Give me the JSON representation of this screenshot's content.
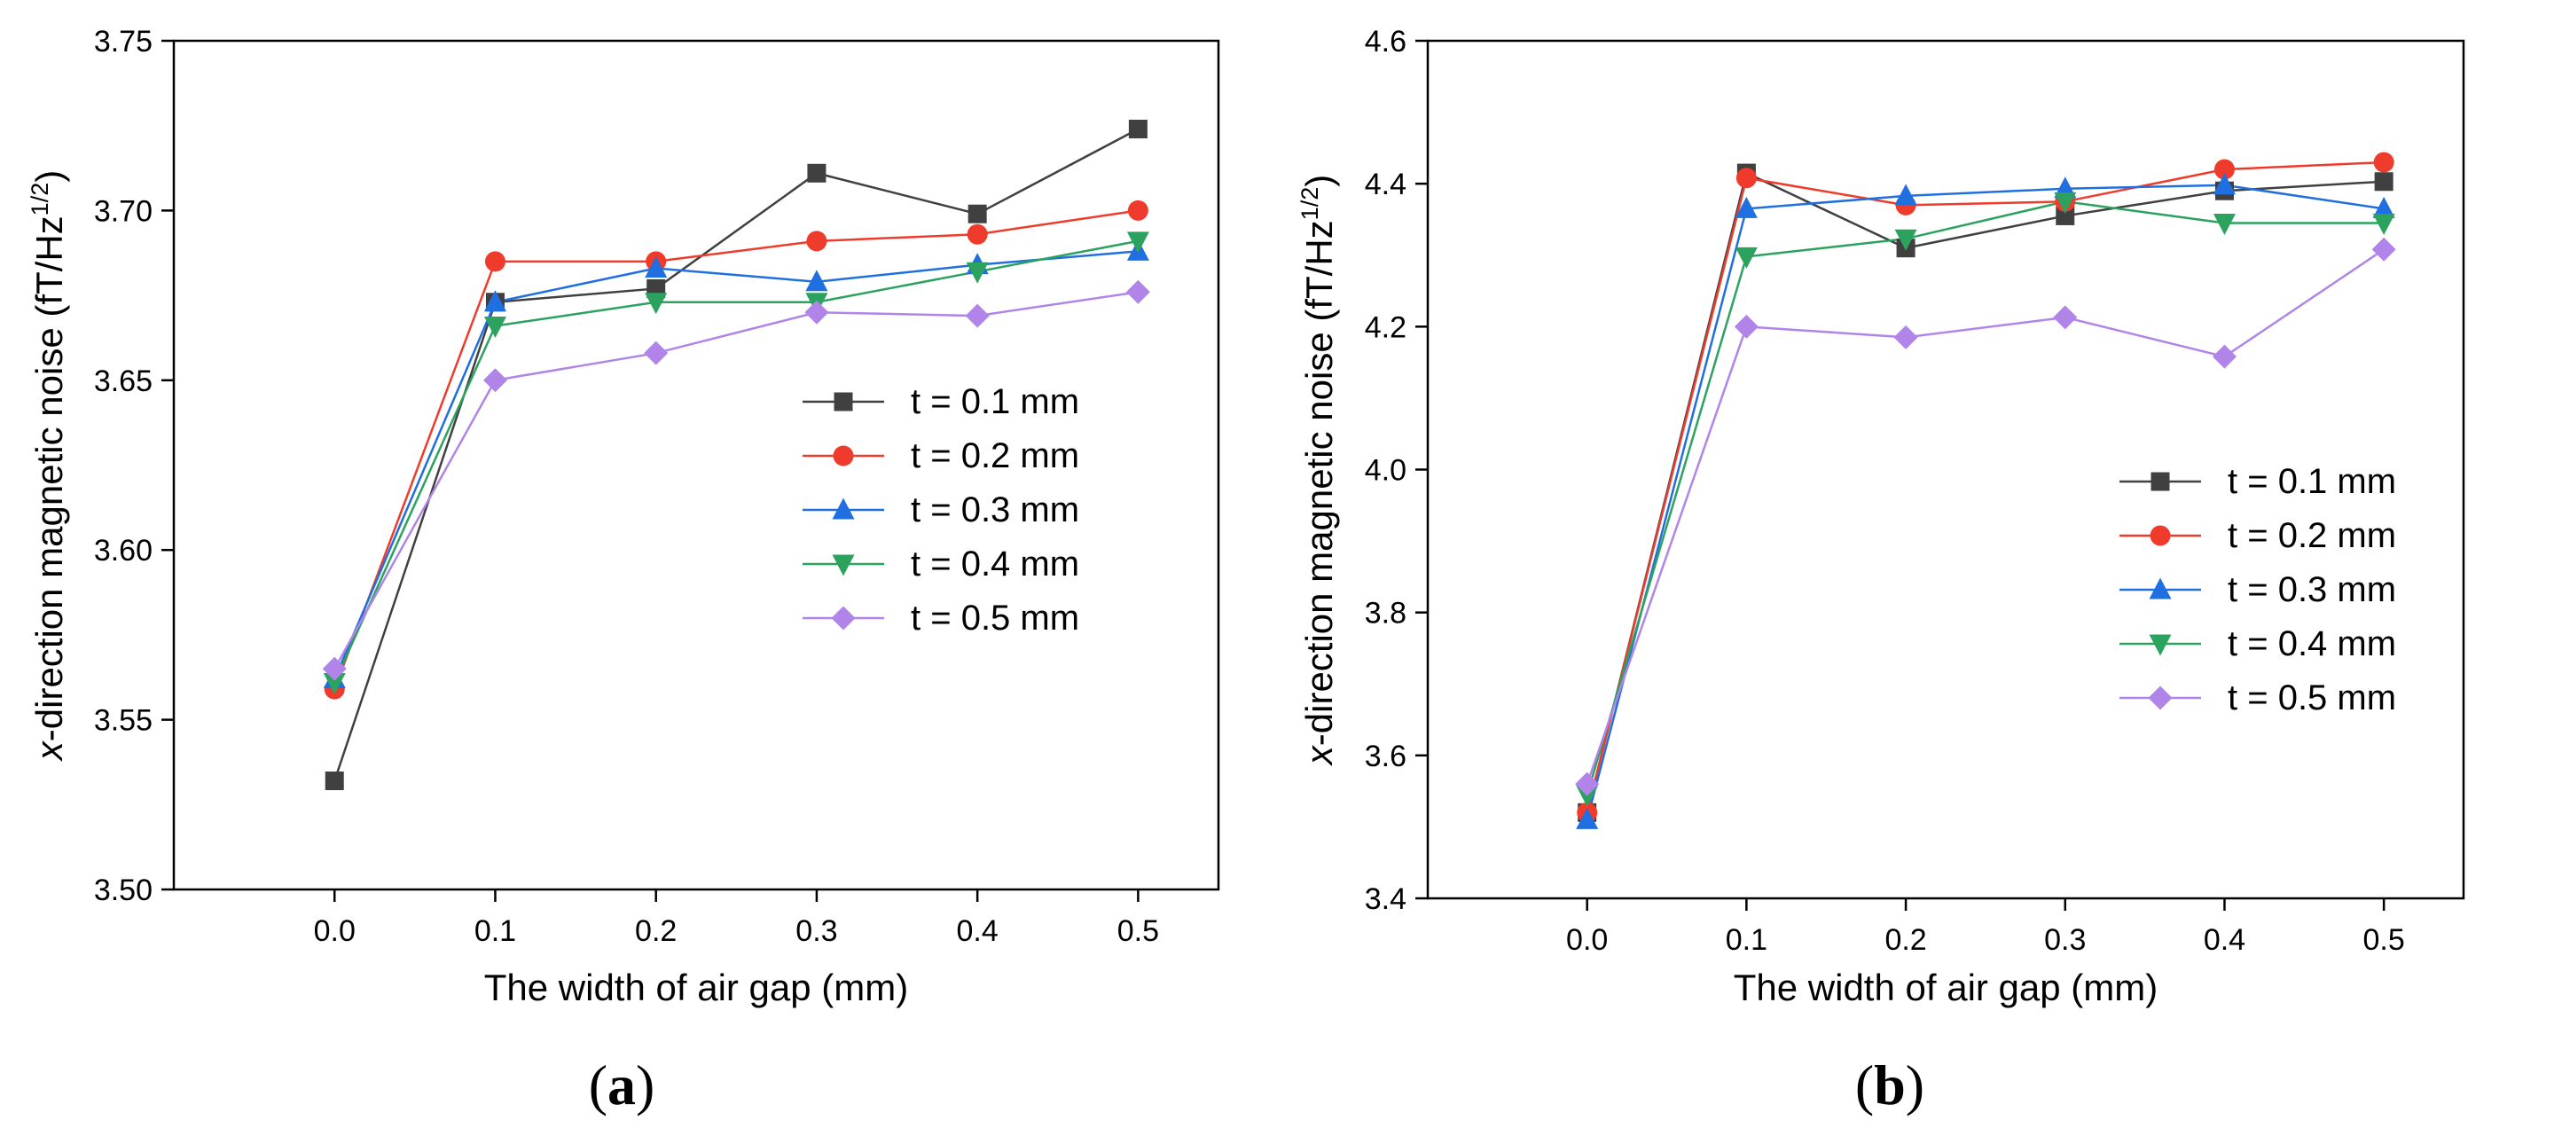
{
  "chart_data": [
    {
      "type": "line",
      "panel_label": "a",
      "xlabel": "The width of air gap (mm)",
      "ylabel_prefix": "x",
      "ylabel_main": "-direction magnetic noise (fT/Hz",
      "ylabel_sup": "1/2",
      "ylabel_end": ")",
      "x": [
        0.0,
        0.1,
        0.2,
        0.3,
        0.4,
        0.5
      ],
      "xlim": [
        -0.1,
        0.55
      ],
      "ylim": [
        3.5,
        3.75
      ],
      "xticks": [
        "0.0",
        "0.1",
        "0.2",
        "0.3",
        "0.4",
        "0.5"
      ],
      "yticks": [
        3.5,
        3.55,
        3.6,
        3.65,
        3.7,
        3.75
      ],
      "ytick_labels": [
        "3.50",
        "3.55",
        "3.60",
        "3.65",
        "3.70",
        "3.75"
      ],
      "legend_position": "center-right",
      "series": [
        {
          "name": "t = 0.1 mm",
          "color": "#404040",
          "marker": "square",
          "values": [
            3.532,
            3.673,
            3.677,
            3.711,
            3.699,
            3.724
          ]
        },
        {
          "name": "t = 0.2 mm",
          "color": "#ef3b2c",
          "marker": "circle",
          "values": [
            3.559,
            3.685,
            3.685,
            3.691,
            3.693,
            3.7
          ]
        },
        {
          "name": "t = 0.3 mm",
          "color": "#1f6fe0",
          "marker": "triangle-up",
          "values": [
            3.562,
            3.673,
            3.683,
            3.679,
            3.684,
            3.688
          ]
        },
        {
          "name": "t = 0.4 mm",
          "color": "#2ca25f",
          "marker": "triangle-down",
          "values": [
            3.561,
            3.666,
            3.673,
            3.673,
            3.682,
            3.691
          ]
        },
        {
          "name": "t = 0.5 mm",
          "color": "#b084e8",
          "marker": "diamond",
          "values": [
            3.565,
            3.65,
            3.658,
            3.67,
            3.669,
            3.676
          ]
        }
      ]
    },
    {
      "type": "line",
      "panel_label": "b",
      "xlabel": "The width of air gap (mm)",
      "ylabel_prefix": "x",
      "ylabel_main": "-direction magnetic noise (fT/Hz",
      "ylabel_sup": "1/2",
      "ylabel_end": ")",
      "x": [
        0.0,
        0.1,
        0.2,
        0.3,
        0.4,
        0.5
      ],
      "xlim": [
        -0.1,
        0.55
      ],
      "ylim": [
        3.4,
        4.6
      ],
      "xticks": [
        "0.0",
        "0.1",
        "0.2",
        "0.3",
        "0.4",
        "0.5"
      ],
      "yticks": [
        3.4,
        3.6,
        3.8,
        4.0,
        4.2,
        4.4,
        4.6
      ],
      "ytick_labels": [
        "3.4",
        "3.6",
        "3.8",
        "4.0",
        "4.2",
        "4.4",
        "4.6"
      ],
      "legend_position": "center-right",
      "series": [
        {
          "name": "t = 0.1 mm",
          "color": "#404040",
          "marker": "square",
          "values": [
            3.52,
            4.415,
            4.31,
            4.355,
            4.39,
            4.403
          ]
        },
        {
          "name": "t = 0.2 mm",
          "color": "#ef3b2c",
          "marker": "circle",
          "values": [
            3.52,
            4.408,
            4.37,
            4.375,
            4.42,
            4.43
          ]
        },
        {
          "name": "t = 0.3 mm",
          "color": "#1f6fe0",
          "marker": "triangle-up",
          "values": [
            3.51,
            4.365,
            4.383,
            4.393,
            4.398,
            4.365
          ]
        },
        {
          "name": "t = 0.4 mm",
          "color": "#2ca25f",
          "marker": "triangle-down",
          "values": [
            3.545,
            4.298,
            4.323,
            4.375,
            4.345,
            4.345
          ]
        },
        {
          "name": "t = 0.5 mm",
          "color": "#b084e8",
          "marker": "diamond",
          "values": [
            3.56,
            4.2,
            4.185,
            4.213,
            4.158,
            4.308
          ]
        }
      ]
    }
  ]
}
